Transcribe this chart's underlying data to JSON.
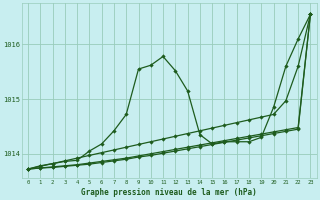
{
  "title": "Graphe pression niveau de la mer (hPa)",
  "background_color": "#c8eef0",
  "grid_color": "#99ccbb",
  "line_color": "#1e5c1e",
  "xlim": [
    -0.5,
    23.5
  ],
  "ylim": [
    1013.55,
    1016.75
  ],
  "yticks": [
    1014,
    1015,
    1016
  ],
  "xticks": [
    0,
    1,
    2,
    3,
    4,
    5,
    6,
    7,
    8,
    9,
    10,
    11,
    12,
    13,
    14,
    15,
    16,
    17,
    18,
    19,
    20,
    21,
    22,
    23
  ],
  "hours": [
    0,
    1,
    2,
    3,
    4,
    5,
    6,
    7,
    8,
    9,
    10,
    11,
    12,
    13,
    14,
    15,
    16,
    17,
    18,
    19,
    20,
    21,
    22,
    23
  ],
  "line_wavy": [
    1013.72,
    1013.78,
    1013.82,
    1013.86,
    1013.88,
    1014.05,
    1014.18,
    1014.42,
    1014.72,
    1015.55,
    1015.62,
    1015.78,
    1015.52,
    1015.15,
    1014.35,
    1014.18,
    1014.22,
    1014.22,
    1014.22,
    1014.3,
    1014.85,
    1015.6,
    1016.1,
    1016.55
  ],
  "line_diagonal": [
    1013.72,
    1013.77,
    1013.82,
    1013.87,
    1013.92,
    1013.97,
    1014.02,
    1014.07,
    1014.12,
    1014.17,
    1014.22,
    1014.27,
    1014.32,
    1014.37,
    1014.42,
    1014.47,
    1014.52,
    1014.57,
    1014.62,
    1014.67,
    1014.72,
    1014.97,
    1015.6,
    1016.55
  ],
  "line_flat1": [
    1013.72,
    1013.74,
    1013.76,
    1013.78,
    1013.8,
    1013.83,
    1013.86,
    1013.89,
    1013.92,
    1013.96,
    1014.0,
    1014.04,
    1014.08,
    1014.12,
    1014.16,
    1014.2,
    1014.24,
    1014.28,
    1014.32,
    1014.36,
    1014.4,
    1014.44,
    1014.48,
    1016.55
  ],
  "line_flat2": [
    1013.72,
    1013.74,
    1013.75,
    1013.77,
    1013.79,
    1013.81,
    1013.84,
    1013.87,
    1013.9,
    1013.94,
    1013.97,
    1014.01,
    1014.05,
    1014.09,
    1014.13,
    1014.17,
    1014.21,
    1014.25,
    1014.29,
    1014.33,
    1014.37,
    1014.41,
    1014.45,
    1016.55
  ]
}
